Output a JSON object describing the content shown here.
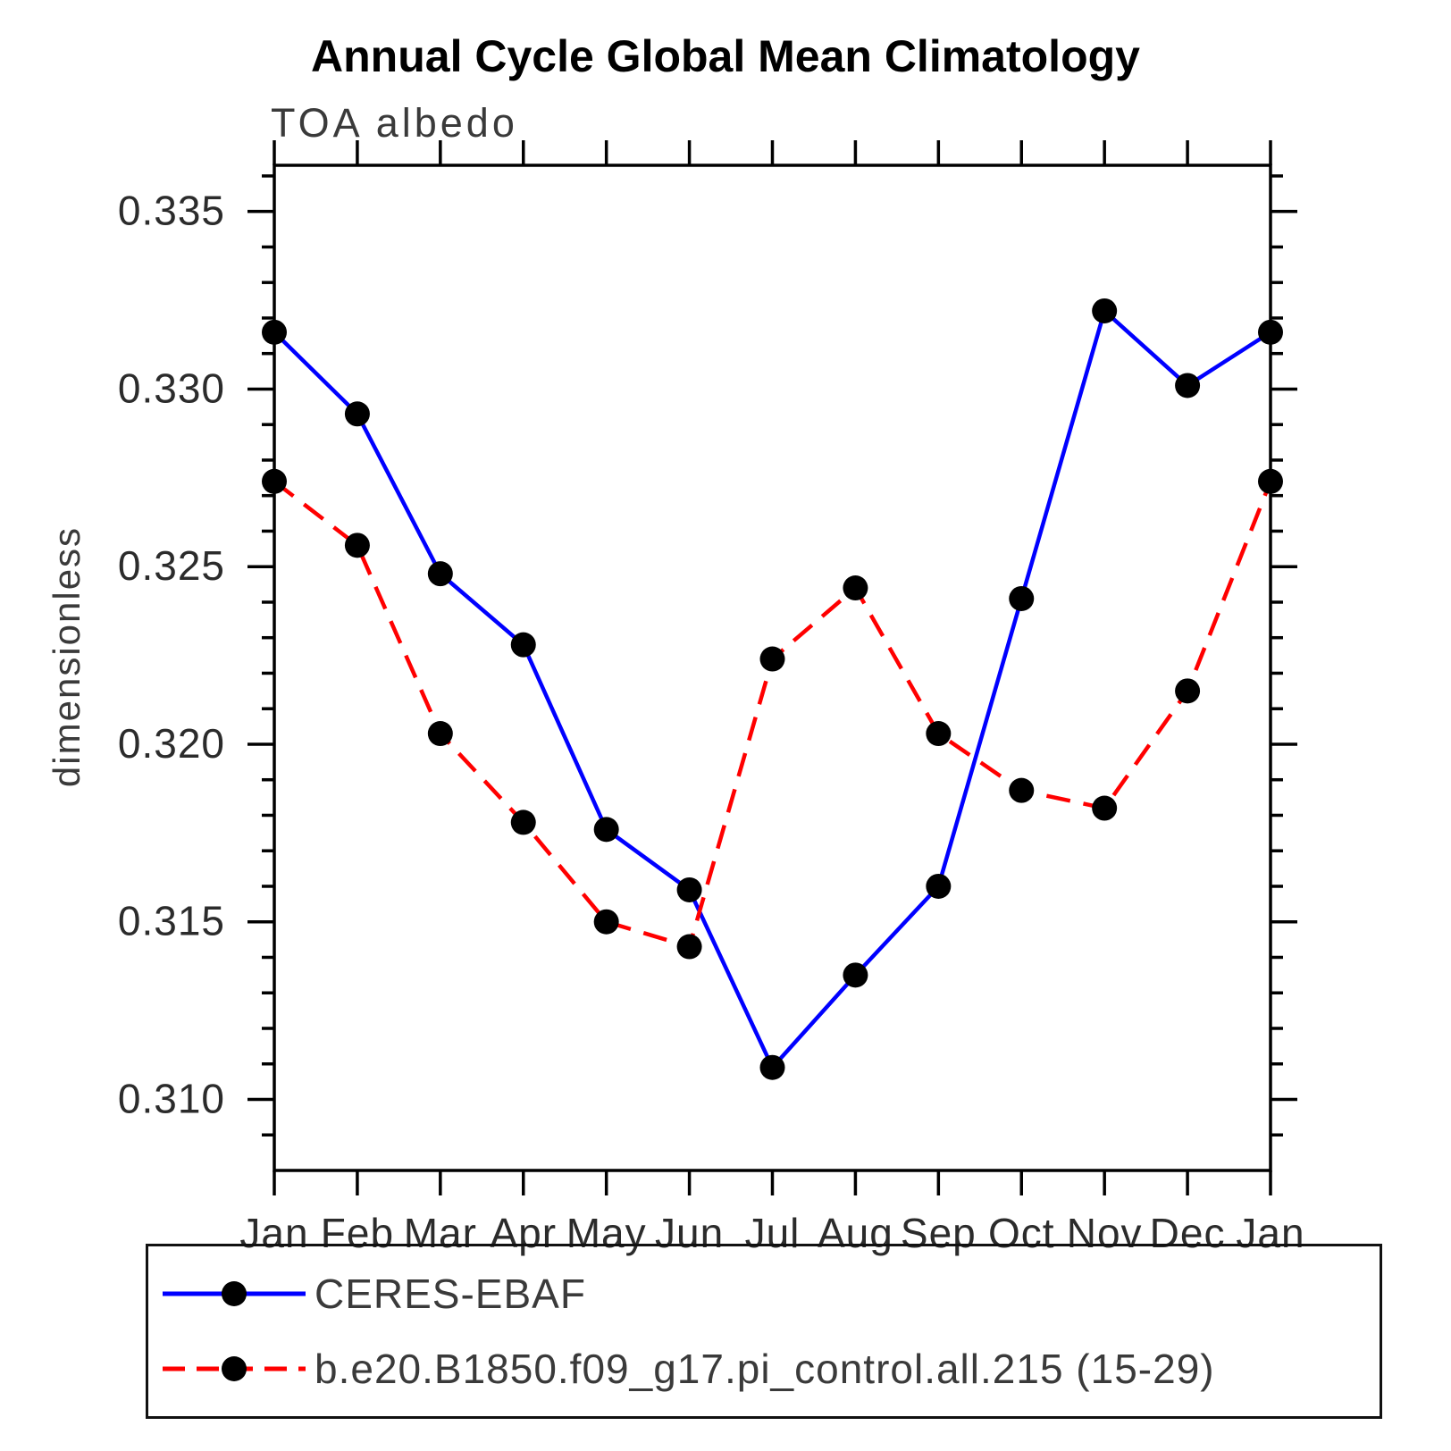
{
  "chart_data": {
    "type": "line",
    "title": "Annual Cycle Global Mean Climatology",
    "subtitle": "TOA albedo",
    "xlabel": "",
    "ylabel": "dimensionless",
    "x_tick_labels": [
      "Jan",
      "Feb",
      "Mar",
      "Apr",
      "May",
      "Jun",
      "Jul",
      "Aug",
      "Sep",
      "Oct",
      "Nov",
      "Dec",
      "Jan"
    ],
    "y_ticks": [
      0.31,
      0.315,
      0.32,
      0.325,
      0.33,
      0.335
    ],
    "y_tick_labels": [
      "0.310",
      "0.315",
      "0.320",
      "0.325",
      "0.330",
      "0.335"
    ],
    "ylim": [
      0.308,
      0.3363
    ],
    "y_minor_step": 0.001,
    "grid": false,
    "legend_position": "bottom",
    "frame_color": "#000000",
    "series": [
      {
        "name": "CERES-EBAF",
        "color": "#0000ff",
        "style": "solid",
        "marker": "circle",
        "marker_color": "#000000",
        "values": [
          0.3316,
          0.3293,
          0.3248,
          0.3228,
          0.3176,
          0.3159,
          0.3109,
          0.3135,
          0.316,
          0.3241,
          0.3322,
          0.3301,
          0.3316
        ]
      },
      {
        "name": "b.e20.B1850.f09_g17.pi_control.all.215 (15-29)",
        "color": "#ff0000",
        "style": "dashed",
        "marker": "circle",
        "marker_color": "#000000",
        "values": [
          0.3274,
          0.3256,
          0.3203,
          0.3178,
          0.315,
          0.3143,
          0.3224,
          0.3244,
          0.3203,
          0.3187,
          0.3182,
          0.3215,
          0.3274
        ]
      }
    ]
  }
}
